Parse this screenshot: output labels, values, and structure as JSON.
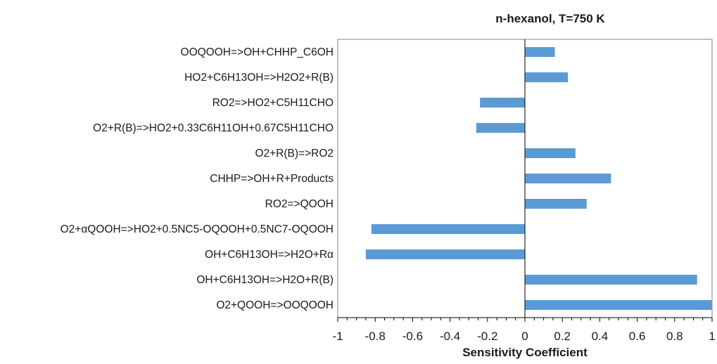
{
  "chart_data": {
    "type": "bar",
    "orientation": "horizontal",
    "title": "n-hexanol, T=750 K",
    "xlabel": "Sensitivity Coefficient",
    "ylabel": "",
    "xlim": [
      -1,
      1
    ],
    "xticks": [
      "-1",
      "-0.8",
      "-0.6",
      "-0.4",
      "-0.2",
      "0",
      "0.2",
      "0.4",
      "0.6",
      "0.8",
      "1"
    ],
    "grid": false,
    "bar_color": "#5B9BD5",
    "categories": [
      "OOQOOH=>OH+CHHP_C6OH",
      "HO2+C6H13OH=>H2O2+R(B)",
      "RO2=>HO2+C5H11CHO",
      "O2+R(B)=>HO2+0.33C6H11OH+0.67C5H11CHO",
      "O2+R(B)=>RO2",
      "CHHP=>OH+R+Products",
      "RO2=>QOOH",
      "O2+αQOOH=>HO2+0.5NC5-OQOOH+0.5NC7-OQOOH",
      "OH+C6H13OH=>H2O+Rα",
      "OH+C6H13OH=>H2O+R(B)",
      "O2+QOOH=>OOQOOH"
    ],
    "values": [
      0.16,
      0.23,
      -0.24,
      -0.26,
      0.27,
      0.46,
      0.33,
      -0.82,
      -0.85,
      0.92,
      1.0
    ]
  }
}
